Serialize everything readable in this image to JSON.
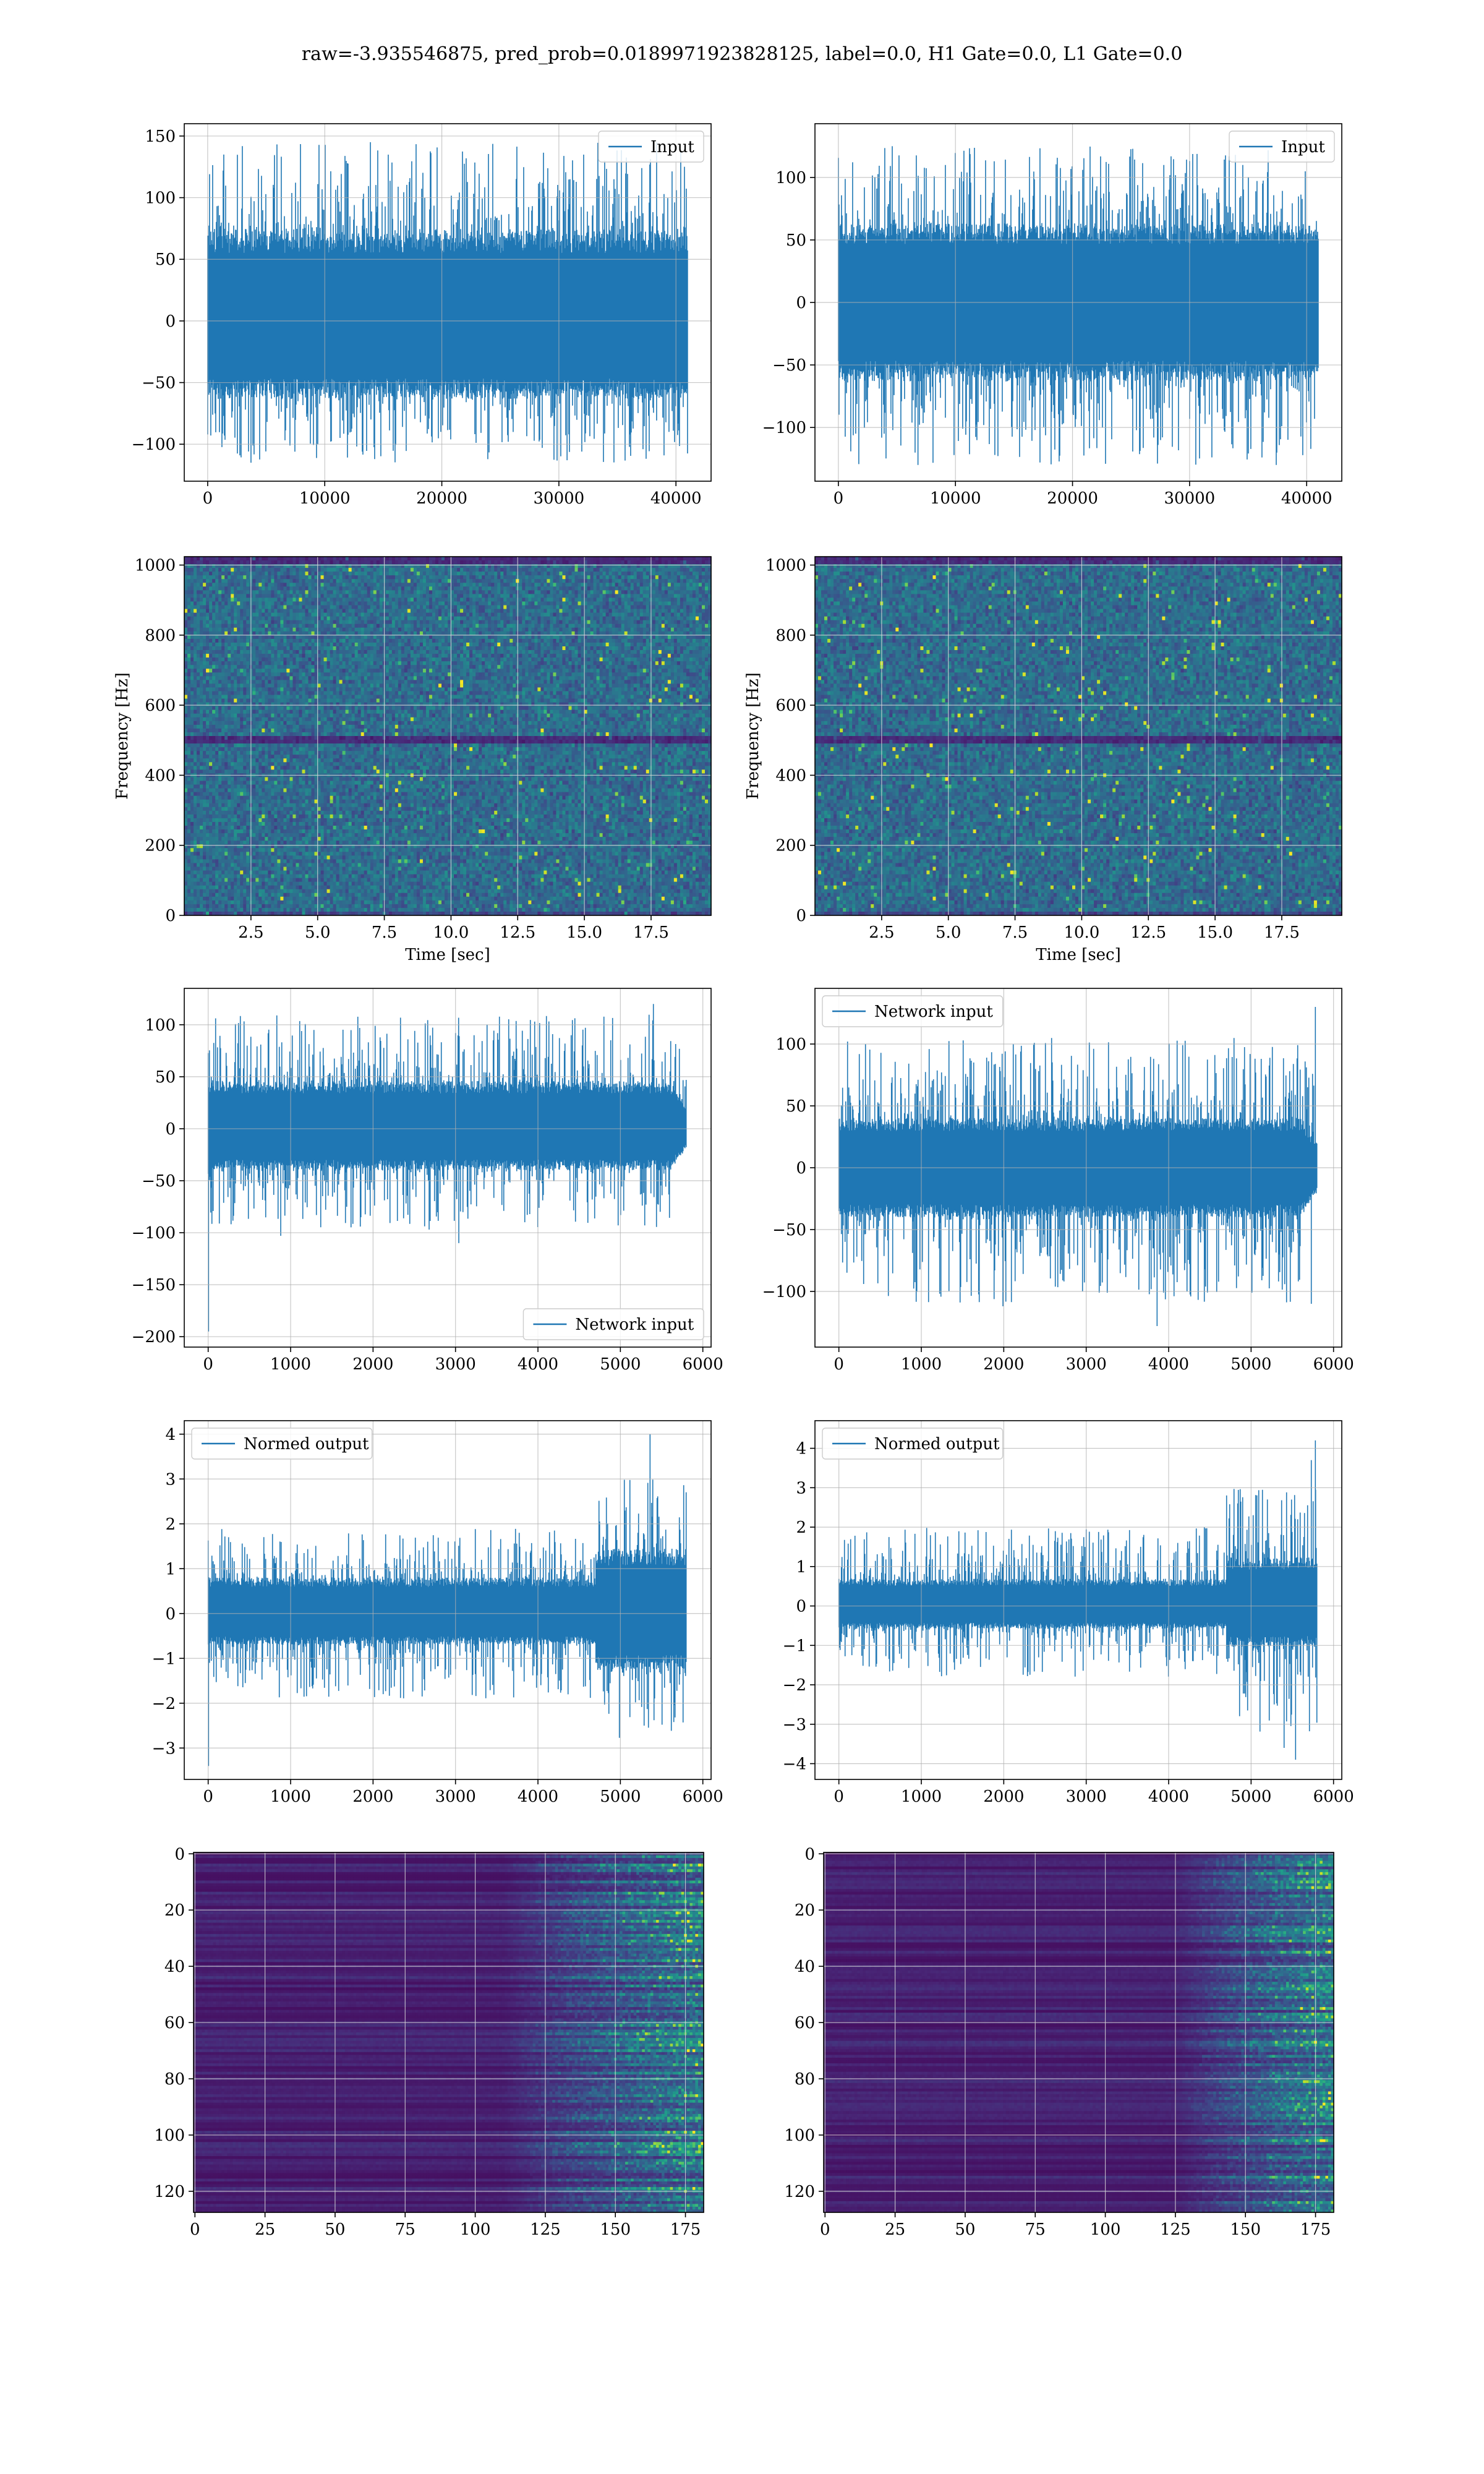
{
  "suptitle": "raw=-3.935546875, pred_prob=0.0189971923828125, label=0.0, H1 Gate=0.0, L1 Gate=0.0",
  "colors": {
    "line": "#1f77b4",
    "grid": "#b0b0b0",
    "axis": "#000000",
    "viridis": [
      "#440154",
      "#482878",
      "#3e4a89",
      "#31688e",
      "#26828e",
      "#1f9e89",
      "#35b779",
      "#6ece58",
      "#b5de2b",
      "#fde725"
    ]
  },
  "chart_data": [
    {
      "id": "r1c1",
      "type": "line",
      "title": "",
      "xlabel": "",
      "ylabel": "",
      "xlim": [
        -2000,
        43000
      ],
      "ylim": [
        -130,
        160
      ],
      "xticks": [
        0,
        10000,
        20000,
        30000,
        40000
      ],
      "xticklabels": [
        "0",
        "10000",
        "20000",
        "30000",
        "40000"
      ],
      "yticks": [
        -100,
        -50,
        0,
        50,
        100,
        150
      ],
      "yticklabels": [
        "−100",
        "−50",
        "0",
        "50",
        "100",
        "150"
      ],
      "grid": true,
      "legend": {
        "label": "Input",
        "loc": "upper right"
      },
      "series": [
        {
          "name": "Input",
          "n": 40960,
          "core_range": [
            -55,
            65
          ],
          "extreme_range": [
            -115,
            145
          ],
          "spikes": [
            [
              13900,
              145
            ],
            [
              34700,
              115
            ],
            [
              3700,
              -115
            ],
            [
              30700,
              -113
            ]
          ]
        }
      ]
    },
    {
      "id": "r1c2",
      "type": "line",
      "title": "",
      "xlabel": "",
      "ylabel": "",
      "xlim": [
        -2000,
        43000
      ],
      "ylim": [
        -143,
        143
      ],
      "xticks": [
        0,
        10000,
        20000,
        30000,
        40000
      ],
      "xticklabels": [
        "0",
        "10000",
        "20000",
        "30000",
        "40000"
      ],
      "yticks": [
        -100,
        -50,
        0,
        50,
        100
      ],
      "yticklabels": [
        "−100",
        "−50",
        "0",
        "50",
        "100"
      ],
      "grid": true,
      "legend": {
        "label": "Input",
        "loc": "upper right"
      },
      "series": [
        {
          "name": "Input",
          "n": 40960,
          "core_range": [
            -55,
            55
          ],
          "extreme_range": [
            -130,
            125
          ],
          "spikes": [
            [
              4600,
              125
            ],
            [
              6800,
              -130
            ],
            [
              37400,
              -130
            ],
            [
              27800,
              110
            ]
          ]
        }
      ]
    },
    {
      "id": "r2c1",
      "type": "heatmap",
      "title": "",
      "xlabel": "Time [sec]",
      "ylabel": "Frequency [Hz]",
      "xlim": [
        0,
        19.75
      ],
      "ylim": [
        0,
        1024
      ],
      "xticks": [
        2.5,
        5.0,
        7.5,
        10.0,
        12.5,
        15.0,
        17.5
      ],
      "xticklabels": [
        "2.5",
        "5.0",
        "7.5",
        "10.0",
        "12.5",
        "15.0",
        "17.5"
      ],
      "yticks": [
        0,
        200,
        400,
        600,
        800,
        1000
      ],
      "yticklabels": [
        "0",
        "200",
        "400",
        "600",
        "800",
        "1000"
      ],
      "grid": true,
      "colormap": "viridis",
      "dark_bands_hz": [
        500,
        1000
      ]
    },
    {
      "id": "r2c2",
      "type": "heatmap",
      "title": "",
      "xlabel": "Time [sec]",
      "ylabel": "Frequency [Hz]",
      "xlim": [
        0,
        19.75
      ],
      "ylim": [
        0,
        1024
      ],
      "xticks": [
        2.5,
        5.0,
        7.5,
        10.0,
        12.5,
        15.0,
        17.5
      ],
      "xticklabels": [
        "2.5",
        "5.0",
        "7.5",
        "10.0",
        "12.5",
        "15.0",
        "17.5"
      ],
      "yticks": [
        0,
        200,
        400,
        600,
        800,
        1000
      ],
      "yticklabels": [
        "0",
        "200",
        "400",
        "600",
        "800",
        "1000"
      ],
      "grid": true,
      "colormap": "viridis",
      "dark_bands_hz": [
        500,
        1000
      ]
    },
    {
      "id": "r3c1",
      "type": "line",
      "title": "",
      "xlabel": "",
      "ylabel": "",
      "xlim": [
        -290,
        6100
      ],
      "ylim": [
        -210,
        135
      ],
      "xticks": [
        0,
        1000,
        2000,
        3000,
        4000,
        5000,
        6000
      ],
      "xticklabels": [
        "0",
        "1000",
        "2000",
        "3000",
        "4000",
        "5000",
        "6000"
      ],
      "yticks": [
        -200,
        -150,
        -100,
        -50,
        0,
        50,
        100
      ],
      "yticklabels": [
        "−200",
        "−150",
        "−100",
        "−50",
        "0",
        "50",
        "100"
      ],
      "grid": true,
      "legend": {
        "label": "Network input",
        "loc": "lower right"
      },
      "series": [
        {
          "name": "Network input",
          "n": 5800,
          "core_range": [
            -35,
            40
          ],
          "extreme_range": [
            -95,
            110
          ],
          "spikes": [
            [
              5,
              -195
            ],
            [
              5,
              -130
            ],
            [
              5,
              -75
            ],
            [
              5400,
              120
            ],
            [
              3040,
              -110
            ],
            [
              2680,
              -97
            ],
            [
              880,
              -103
            ]
          ],
          "tail_taper": [
            5600,
            5800
          ]
        }
      ]
    },
    {
      "id": "r3c2",
      "type": "line",
      "title": "",
      "xlabel": "",
      "ylabel": "",
      "xlim": [
        -290,
        6100
      ],
      "ylim": [
        -145,
        145
      ],
      "xticks": [
        0,
        1000,
        2000,
        3000,
        4000,
        5000,
        6000
      ],
      "xticklabels": [
        "0",
        "1000",
        "2000",
        "3000",
        "4000",
        "5000",
        "6000"
      ],
      "yticks": [
        -100,
        -50,
        0,
        50,
        100
      ],
      "yticklabels": [
        "−100",
        "−50",
        "0",
        "50",
        "100"
      ],
      "grid": true,
      "legend": {
        "label": "Network input",
        "loc": "upper left"
      },
      "series": [
        {
          "name": "Network input",
          "n": 5800,
          "core_range": [
            -35,
            35
          ],
          "extreme_range": [
            -110,
            105
          ],
          "spikes": [
            [
              5780,
              130
            ],
            [
              3860,
              -128
            ],
            [
              5730,
              -110
            ],
            [
              1990,
              -112
            ]
          ],
          "tail_taper": [
            5600,
            5800
          ]
        }
      ]
    },
    {
      "id": "r4c1",
      "type": "line",
      "title": "",
      "xlabel": "",
      "ylabel": "",
      "xlim": [
        -290,
        6100
      ],
      "ylim": [
        -3.7,
        4.3
      ],
      "xticks": [
        0,
        1000,
        2000,
        3000,
        4000,
        5000,
        6000
      ],
      "xticklabels": [
        "0",
        "1000",
        "2000",
        "3000",
        "4000",
        "5000",
        "6000"
      ],
      "yticks": [
        -3,
        -2,
        -1,
        0,
        1,
        2,
        3,
        4
      ],
      "yticklabels": [
        "−3",
        "−2",
        "−1",
        "0",
        "1",
        "2",
        "3",
        "4"
      ],
      "grid": true,
      "legend": {
        "label": "Normed output",
        "loc": "upper left"
      },
      "series": [
        {
          "name": "Normed output",
          "n": 5800,
          "core_range": [
            -0.6,
            0.7
          ],
          "extreme_range": [
            -1.9,
            1.9
          ],
          "burst": {
            "x": [
              4700,
              5800
            ],
            "extreme_range": [
              -2.8,
              3.0
            ]
          },
          "spikes": [
            [
              5,
              -3.4
            ],
            [
              5360,
              4.0
            ],
            [
              5,
              -2.2
            ]
          ]
        }
      ]
    },
    {
      "id": "r4c2",
      "type": "line",
      "title": "",
      "xlabel": "",
      "ylabel": "",
      "xlim": [
        -290,
        6100
      ],
      "ylim": [
        -4.4,
        4.7
      ],
      "xticks": [
        0,
        1000,
        2000,
        3000,
        4000,
        5000,
        6000
      ],
      "xticklabels": [
        "0",
        "1000",
        "2000",
        "3000",
        "4000",
        "5000",
        "6000"
      ],
      "yticks": [
        -4,
        -3,
        -2,
        -1,
        0,
        1,
        2,
        3,
        4
      ],
      "yticklabels": [
        "−4",
        "−3",
        "−2",
        "−1",
        "0",
        "1",
        "2",
        "3",
        "4"
      ],
      "grid": true,
      "legend": {
        "label": "Normed output",
        "loc": "upper left"
      },
      "series": [
        {
          "name": "Normed output",
          "n": 5800,
          "core_range": [
            -0.5,
            0.6
          ],
          "extreme_range": [
            -1.8,
            2.0
          ],
          "burst": {
            "x": [
              4700,
              5800
            ],
            "extreme_range": [
              -3.2,
              3.0
            ]
          },
          "spikes": [
            [
              5780,
              4.2
            ],
            [
              5540,
              -3.9
            ],
            [
              5400,
              -3.6
            ],
            [
              5730,
              3.7
            ]
          ]
        }
      ]
    },
    {
      "id": "r5c1",
      "type": "heatmap",
      "title": "",
      "xlabel": "",
      "ylabel": "",
      "xlim": [
        -0.5,
        181.5
      ],
      "ylim": [
        127.5,
        -0.5
      ],
      "xticks": [
        0,
        25,
        50,
        75,
        100,
        125,
        150,
        175
      ],
      "xticklabels": [
        "0",
        "25",
        "50",
        "75",
        "100",
        "125",
        "150",
        "175"
      ],
      "yticks": [
        0,
        20,
        40,
        60,
        80,
        100,
        120
      ],
      "yticklabels": [
        "0",
        "20",
        "40",
        "60",
        "80",
        "100",
        "120"
      ],
      "grid": true,
      "colormap": "viridis",
      "rows": 128,
      "cols": 182,
      "activity_onset_col": 110
    },
    {
      "id": "r5c2",
      "type": "heatmap",
      "title": "",
      "xlabel": "",
      "ylabel": "",
      "xlim": [
        -0.5,
        181.5
      ],
      "ylim": [
        127.5,
        -0.5
      ],
      "xticks": [
        0,
        25,
        50,
        75,
        100,
        125,
        150,
        175
      ],
      "xticklabels": [
        "0",
        "25",
        "50",
        "75",
        "100",
        "125",
        "150",
        "175"
      ],
      "yticks": [
        0,
        20,
        40,
        60,
        80,
        100,
        120
      ],
      "yticklabels": [
        "0",
        "20",
        "40",
        "60",
        "80",
        "100",
        "120"
      ],
      "grid": true,
      "colormap": "viridis",
      "rows": 128,
      "cols": 182,
      "activity_onset_col": 125
    }
  ]
}
